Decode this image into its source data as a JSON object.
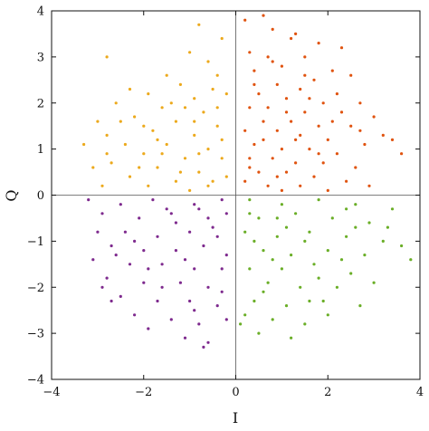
{
  "chart_data": {
    "type": "scatter",
    "title": "",
    "xlabel": "I",
    "ylabel": "Q",
    "xlim": [
      -4,
      4
    ],
    "ylim": [
      -4,
      4
    ],
    "xticks": [
      -4,
      -2,
      0,
      2,
      4
    ],
    "yticks": [
      -4,
      -3,
      -2,
      -1,
      0,
      1,
      2,
      3,
      4
    ],
    "xtick_labels": [
      "−4",
      "−2",
      "0",
      "2",
      "4"
    ],
    "ytick_labels": [
      "−4",
      "−3",
      "−2",
      "−1",
      "0",
      "1",
      "2",
      "3",
      "4"
    ],
    "grid": false,
    "zero_lines": true,
    "series": [
      {
        "quadrant": "I>0, Q>0",
        "color": "#e0530f",
        "points": [
          [
            0.2,
            3.8
          ],
          [
            0.6,
            3.9
          ],
          [
            0.8,
            3.6
          ],
          [
            1.3,
            3.5
          ],
          [
            1.2,
            3.4
          ],
          [
            2.3,
            3.2
          ],
          [
            0.3,
            3.1
          ],
          [
            1.8,
            3.3
          ],
          [
            1.5,
            3.0
          ],
          [
            0.7,
            3.0
          ],
          [
            1.0,
            2.8
          ],
          [
            2.1,
            2.7
          ],
          [
            2.5,
            2.6
          ],
          [
            0.4,
            2.7
          ],
          [
            1.7,
            2.5
          ],
          [
            0.9,
            2.4
          ],
          [
            1.4,
            2.3
          ],
          [
            2.2,
            2.2
          ],
          [
            0.5,
            2.2
          ],
          [
            1.1,
            2.1
          ],
          [
            1.9,
            2.0
          ],
          [
            2.7,
            2.0
          ],
          [
            0.3,
            1.9
          ],
          [
            0.7,
            1.9
          ],
          [
            1.5,
            1.8
          ],
          [
            2.3,
            1.8
          ],
          [
            3.0,
            1.7
          ],
          [
            0.6,
            1.6
          ],
          [
            1.2,
            1.6
          ],
          [
            1.8,
            1.5
          ],
          [
            2.5,
            1.5
          ],
          [
            3.2,
            1.3
          ],
          [
            0.2,
            1.4
          ],
          [
            0.9,
            1.4
          ],
          [
            1.4,
            1.3
          ],
          [
            2.0,
            1.2
          ],
          [
            2.8,
            1.1
          ],
          [
            0.4,
            1.1
          ],
          [
            1.0,
            1.0
          ],
          [
            1.6,
            1.0
          ],
          [
            2.2,
            0.9
          ],
          [
            0.3,
            0.8
          ],
          [
            0.8,
            0.8
          ],
          [
            1.3,
            0.7
          ],
          [
            1.9,
            0.7
          ],
          [
            2.6,
            0.6
          ],
          [
            0.5,
            0.5
          ],
          [
            1.1,
            0.5
          ],
          [
            1.7,
            0.4
          ],
          [
            2.4,
            0.3
          ],
          [
            0.2,
            0.3
          ],
          [
            0.7,
            0.2
          ],
          [
            1.4,
            0.2
          ],
          [
            2.0,
            0.1
          ],
          [
            2.9,
            0.2
          ],
          [
            3.6,
            0.9
          ],
          [
            0.6,
            1.2
          ],
          [
            1.1,
            1.8
          ],
          [
            1.5,
            2.6
          ],
          [
            0.8,
            2.9
          ],
          [
            0.4,
            2.4
          ],
          [
            1.3,
            1.2
          ],
          [
            2.1,
            1.6
          ],
          [
            0.9,
            0.4
          ],
          [
            1.8,
            0.9
          ],
          [
            2.7,
            1.4
          ],
          [
            3.4,
            1.2
          ],
          [
            0.3,
            0.6
          ],
          [
            1.0,
            0.1
          ],
          [
            1.6,
            2.1
          ]
        ]
      },
      {
        "quadrant": "I<0, Q>0",
        "color": "#eca91c",
        "points": [
          [
            -0.8,
            3.7
          ],
          [
            -2.8,
            3.0
          ],
          [
            -0.3,
            3.4
          ],
          [
            -1.0,
            3.1
          ],
          [
            -0.6,
            2.9
          ],
          [
            -1.5,
            2.6
          ],
          [
            -2.3,
            2.3
          ],
          [
            -0.4,
            2.6
          ],
          [
            -1.2,
            2.4
          ],
          [
            -1.9,
            2.2
          ],
          [
            -0.9,
            2.1
          ],
          [
            -2.6,
            2.0
          ],
          [
            -0.2,
            2.2
          ],
          [
            -1.6,
            1.9
          ],
          [
            -0.7,
            1.8
          ],
          [
            -2.2,
            1.7
          ],
          [
            -3.0,
            1.6
          ],
          [
            -1.3,
            1.6
          ],
          [
            -0.4,
            1.5
          ],
          [
            -1.8,
            1.4
          ],
          [
            -2.8,
            1.3
          ],
          [
            -0.9,
            1.3
          ],
          [
            -3.3,
            1.1
          ],
          [
            -2.4,
            1.1
          ],
          [
            -1.5,
            1.1
          ],
          [
            -0.6,
            1.0
          ],
          [
            -2.0,
            0.9
          ],
          [
            -1.1,
            0.8
          ],
          [
            -0.3,
            0.8
          ],
          [
            -2.7,
            0.7
          ],
          [
            -1.7,
            0.6
          ],
          [
            -0.8,
            0.5
          ],
          [
            -2.3,
            0.4
          ],
          [
            -1.3,
            0.3
          ],
          [
            -0.5,
            0.3
          ],
          [
            -2.9,
            0.2
          ],
          [
            -1.9,
            0.2
          ],
          [
            -1.0,
            0.1
          ],
          [
            -0.2,
            0.4
          ],
          [
            -3.1,
            0.6
          ],
          [
            -2.0,
            1.5
          ],
          [
            -1.4,
            2.0
          ],
          [
            -0.5,
            2.3
          ],
          [
            -1.1,
            1.9
          ],
          [
            -0.8,
            0.9
          ],
          [
            -1.6,
            0.9
          ],
          [
            -2.5,
            1.6
          ],
          [
            -0.3,
            1.2
          ],
          [
            -1.2,
            0.5
          ],
          [
            -2.1,
            0.6
          ],
          [
            -0.6,
            0.2
          ],
          [
            -1.7,
            1.2
          ],
          [
            -0.9,
            1.6
          ],
          [
            -2.8,
            0.9
          ],
          [
            -0.4,
            1.9
          ]
        ]
      },
      {
        "quadrant": "I<0, Q<0",
        "color": "#7e2a8e",
        "points": [
          [
            -3.2,
            -0.1
          ],
          [
            -2.5,
            -0.2
          ],
          [
            -1.8,
            -0.1
          ],
          [
            -0.9,
            -0.2
          ],
          [
            -0.3,
            -0.1
          ],
          [
            -2.9,
            -0.4
          ],
          [
            -2.1,
            -0.5
          ],
          [
            -1.4,
            -0.4
          ],
          [
            -0.6,
            -0.5
          ],
          [
            -3.0,
            -0.8
          ],
          [
            -2.4,
            -0.8
          ],
          [
            -1.7,
            -0.9
          ],
          [
            -1.0,
            -0.8
          ],
          [
            -0.4,
            -0.9
          ],
          [
            -2.7,
            -1.1
          ],
          [
            -2.0,
            -1.2
          ],
          [
            -1.3,
            -1.2
          ],
          [
            -0.7,
            -1.1
          ],
          [
            -0.2,
            -1.3
          ],
          [
            -3.1,
            -1.4
          ],
          [
            -2.3,
            -1.5
          ],
          [
            -1.6,
            -1.5
          ],
          [
            -0.9,
            -1.6
          ],
          [
            -0.3,
            -1.6
          ],
          [
            -2.8,
            -1.8
          ],
          [
            -2.0,
            -1.9
          ],
          [
            -1.2,
            -1.9
          ],
          [
            -0.6,
            -2.0
          ],
          [
            -2.9,
            -2.0
          ],
          [
            -2.5,
            -2.2
          ],
          [
            -1.7,
            -2.3
          ],
          [
            -1.0,
            -2.3
          ],
          [
            -0.4,
            -2.4
          ],
          [
            -2.7,
            -2.3
          ],
          [
            -2.2,
            -2.6
          ],
          [
            -1.4,
            -2.7
          ],
          [
            -0.8,
            -2.8
          ],
          [
            -0.2,
            -2.7
          ],
          [
            -1.9,
            -2.9
          ],
          [
            -1.1,
            -3.1
          ],
          [
            -0.6,
            -3.2
          ],
          [
            -0.7,
            -3.3
          ],
          [
            -1.5,
            -0.3
          ],
          [
            -0.8,
            -0.3
          ],
          [
            -2.2,
            -1.0
          ],
          [
            -1.1,
            -1.4
          ],
          [
            -0.5,
            -0.7
          ],
          [
            -1.9,
            -1.6
          ],
          [
            -0.3,
            -2.1
          ],
          [
            -1.3,
            -0.6
          ],
          [
            -2.6,
            -1.3
          ],
          [
            -0.9,
            -2.5
          ],
          [
            -1.6,
            -2.0
          ],
          [
            -0.2,
            -0.4
          ]
        ]
      },
      {
        "quadrant": "I>0, Q<0",
        "color": "#6aae27",
        "points": [
          [
            0.3,
            -0.1
          ],
          [
            1.0,
            -0.2
          ],
          [
            1.8,
            -0.1
          ],
          [
            2.6,
            -0.2
          ],
          [
            3.4,
            -0.3
          ],
          [
            0.5,
            -0.5
          ],
          [
            1.3,
            -0.4
          ],
          [
            2.1,
            -0.5
          ],
          [
            2.9,
            -0.6
          ],
          [
            0.2,
            -0.8
          ],
          [
            0.9,
            -0.9
          ],
          [
            1.6,
            -0.8
          ],
          [
            2.4,
            -0.9
          ],
          [
            3.2,
            -1.0
          ],
          [
            0.6,
            -1.2
          ],
          [
            1.2,
            -1.3
          ],
          [
            2.0,
            -1.2
          ],
          [
            2.8,
            -1.3
          ],
          [
            3.6,
            -1.1
          ],
          [
            0.3,
            -1.6
          ],
          [
            1.0,
            -1.6
          ],
          [
            1.7,
            -1.5
          ],
          [
            2.5,
            -1.7
          ],
          [
            3.8,
            -1.4
          ],
          [
            0.7,
            -1.9
          ],
          [
            1.4,
            -2.0
          ],
          [
            2.2,
            -2.0
          ],
          [
            3.0,
            -1.9
          ],
          [
            0.4,
            -2.3
          ],
          [
            1.1,
            -2.4
          ],
          [
            1.9,
            -2.3
          ],
          [
            2.7,
            -2.4
          ],
          [
            0.8,
            -2.7
          ],
          [
            1.5,
            -2.8
          ],
          [
            0.2,
            -2.6
          ],
          [
            1.2,
            -3.1
          ],
          [
            0.5,
            -3.0
          ],
          [
            0.1,
            -2.8
          ],
          [
            0.9,
            -0.5
          ],
          [
            1.5,
            -1.0
          ],
          [
            2.3,
            -1.4
          ],
          [
            0.4,
            -1.0
          ],
          [
            1.8,
            -1.8
          ],
          [
            0.6,
            -2.1
          ],
          [
            2.6,
            -0.7
          ],
          [
            1.1,
            -0.7
          ],
          [
            0.3,
            -0.4
          ],
          [
            2.0,
            -2.6
          ],
          [
            3.3,
            -0.7
          ],
          [
            0.8,
            -1.4
          ],
          [
            1.6,
            -2.3
          ],
          [
            2.4,
            -0.3
          ]
        ]
      }
    ]
  }
}
